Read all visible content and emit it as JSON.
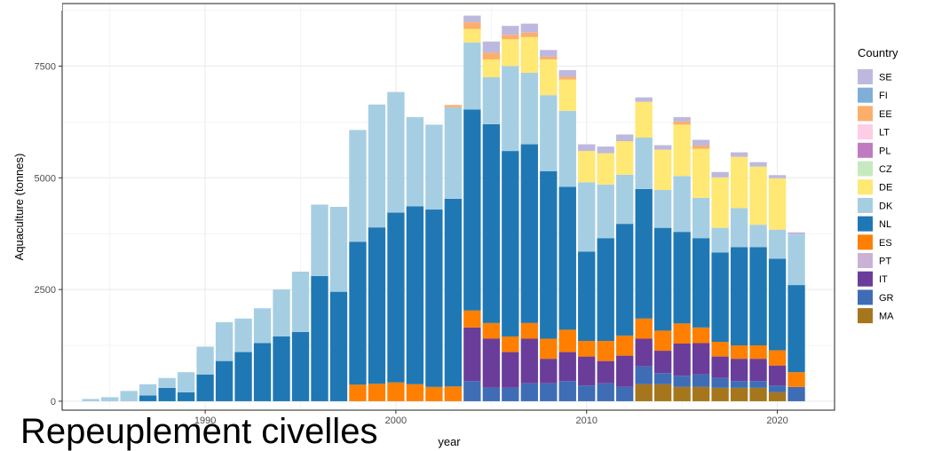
{
  "caption": "Repeuplement civelles",
  "chart_data": {
    "type": "bar",
    "stacked": true,
    "xlabel": "year",
    "ylabel": "Aquaculture (tonnes)",
    "xlim": [
      1982.5,
      2023
    ],
    "ylim": [
      -200,
      8900
    ],
    "x_ticks": [
      1990,
      2000,
      2010,
      2020
    ],
    "y_ticks": [
      0,
      2500,
      5000,
      7500
    ],
    "grid": true,
    "legend": {
      "title": "Country",
      "position": "right"
    },
    "x": [
      1984,
      1985,
      1986,
      1987,
      1988,
      1989,
      1990,
      1991,
      1992,
      1993,
      1994,
      1995,
      1996,
      1997,
      1998,
      1999,
      2000,
      2001,
      2002,
      2003,
      2004,
      2005,
      2006,
      2007,
      2008,
      2009,
      2010,
      2011,
      2012,
      2013,
      2014,
      2015,
      2016,
      2017,
      2018,
      2019,
      2020,
      2021
    ],
    "series": [
      {
        "name": "MA",
        "color": "#A6761D",
        "values": [
          0,
          0,
          0,
          0,
          0,
          0,
          0,
          0,
          0,
          0,
          0,
          0,
          0,
          0,
          0,
          0,
          0,
          0,
          0,
          0,
          0,
          0,
          0,
          0,
          0,
          0,
          0,
          0,
          0,
          380,
          380,
          320,
          320,
          300,
          300,
          300,
          200,
          0
        ]
      },
      {
        "name": "GR",
        "color": "#3E6DB5",
        "values": [
          0,
          0,
          0,
          0,
          0,
          0,
          0,
          0,
          0,
          0,
          0,
          0,
          0,
          0,
          0,
          0,
          0,
          0,
          0,
          0,
          450,
          300,
          300,
          400,
          400,
          450,
          350,
          400,
          320,
          400,
          250,
          250,
          280,
          220,
          150,
          150,
          150,
          320
        ]
      },
      {
        "name": "IT",
        "color": "#6A3D9A",
        "values": [
          0,
          0,
          0,
          0,
          0,
          0,
          0,
          0,
          0,
          0,
          0,
          0,
          0,
          0,
          0,
          0,
          0,
          0,
          0,
          0,
          1200,
          1100,
          800,
          1000,
          550,
          650,
          650,
          500,
          700,
          620,
          500,
          720,
          700,
          480,
          500,
          500,
          450,
          0
        ]
      },
      {
        "name": "PT",
        "color": "#CAB2D6",
        "values": [
          0,
          0,
          0,
          0,
          0,
          0,
          0,
          0,
          0,
          0,
          0,
          0,
          0,
          0,
          0,
          0,
          0,
          0,
          0,
          0,
          0,
          0,
          0,
          0,
          0,
          0,
          0,
          0,
          0,
          0,
          0,
          0,
          0,
          0,
          0,
          0,
          0,
          0
        ]
      },
      {
        "name": "ES",
        "color": "#FF7F00",
        "values": [
          0,
          0,
          0,
          0,
          0,
          0,
          0,
          0,
          0,
          0,
          0,
          0,
          0,
          0,
          370,
          390,
          420,
          380,
          320,
          330,
          380,
          350,
          350,
          350,
          450,
          500,
          350,
          450,
          450,
          450,
          450,
          450,
          350,
          330,
          300,
          300,
          340,
          330
        ]
      },
      {
        "name": "NL",
        "color": "#1F78B4",
        "values": [
          0,
          0,
          0,
          130,
          300,
          200,
          600,
          900,
          1100,
          1300,
          1450,
          1550,
          2800,
          2450,
          3200,
          3500,
          3800,
          3980,
          3970,
          4200,
          4500,
          4450,
          4150,
          4000,
          3750,
          3200,
          2000,
          2300,
          2500,
          2900,
          2300,
          2050,
          2000,
          2000,
          2200,
          2200,
          2050,
          1950
        ]
      },
      {
        "name": "DK",
        "color": "#A6CEE3",
        "values": [
          50,
          90,
          230,
          250,
          220,
          450,
          620,
          870,
          750,
          780,
          1050,
          1350,
          1600,
          1900,
          2500,
          2750,
          2700,
          2000,
          1900,
          2050,
          1500,
          1050,
          1900,
          1600,
          1700,
          1700,
          1550,
          1200,
          1100,
          1150,
          850,
          1250,
          900,
          550,
          870,
          500,
          650,
          1130
        ]
      },
      {
        "name": "CZ",
        "color": "#C7E9C0",
        "values": [
          0,
          0,
          0,
          0,
          0,
          0,
          0,
          0,
          0,
          0,
          0,
          0,
          0,
          0,
          0,
          0,
          0,
          0,
          0,
          0,
          0,
          0,
          0,
          0,
          0,
          0,
          0,
          0,
          0,
          0,
          0,
          0,
          0,
          0,
          0,
          0,
          0,
          0
        ]
      },
      {
        "name": "DE",
        "color": "#FFE873",
        "values": [
          0,
          0,
          0,
          0,
          0,
          0,
          0,
          0,
          0,
          0,
          0,
          0,
          0,
          0,
          0,
          0,
          0,
          0,
          0,
          0,
          300,
          400,
          600,
          800,
          800,
          700,
          700,
          700,
          750,
          800,
          900,
          1150,
          1100,
          1130,
          1150,
          1300,
          1150,
          0
        ]
      },
      {
        "name": "PL",
        "color": "#C07BC0",
        "values": [
          0,
          0,
          0,
          0,
          0,
          0,
          0,
          0,
          0,
          0,
          0,
          0,
          0,
          0,
          0,
          0,
          0,
          0,
          0,
          0,
          0,
          0,
          0,
          0,
          0,
          0,
          0,
          0,
          0,
          0,
          0,
          0,
          0,
          0,
          0,
          0,
          0,
          0
        ]
      },
      {
        "name": "LT",
        "color": "#FCCDE5",
        "values": [
          0,
          0,
          0,
          0,
          0,
          0,
          0,
          0,
          0,
          0,
          0,
          0,
          0,
          0,
          0,
          0,
          0,
          0,
          0,
          0,
          0,
          0,
          0,
          0,
          0,
          0,
          0,
          0,
          0,
          0,
          0,
          0,
          0,
          0,
          0,
          0,
          0,
          0
        ]
      },
      {
        "name": "EE",
        "color": "#FDAE6B",
        "values": [
          0,
          0,
          0,
          0,
          0,
          0,
          0,
          0,
          0,
          0,
          0,
          0,
          0,
          0,
          0,
          0,
          0,
          0,
          0,
          50,
          150,
          150,
          100,
          100,
          60,
          60,
          0,
          0,
          0,
          0,
          0,
          70,
          70,
          0,
          0,
          0,
          0,
          0
        ]
      },
      {
        "name": "FI",
        "color": "#7FAFD6",
        "values": [
          0,
          0,
          0,
          0,
          0,
          0,
          0,
          0,
          0,
          0,
          0,
          0,
          0,
          0,
          0,
          0,
          0,
          0,
          0,
          0,
          0,
          0,
          0,
          0,
          0,
          0,
          0,
          0,
          0,
          0,
          0,
          0,
          0,
          0,
          0,
          0,
          0,
          0
        ]
      },
      {
        "name": "SE",
        "color": "#BDB9DE",
        "values": [
          0,
          0,
          0,
          0,
          0,
          0,
          0,
          0,
          0,
          0,
          0,
          0,
          0,
          0,
          0,
          0,
          0,
          0,
          0,
          0,
          150,
          250,
          200,
          200,
          150,
          150,
          150,
          150,
          150,
          100,
          100,
          100,
          130,
          120,
          100,
          100,
          70,
          50
        ]
      }
    ],
    "legend_order": [
      "SE",
      "FI",
      "EE",
      "LT",
      "PL",
      "CZ",
      "DE",
      "DK",
      "NL",
      "ES",
      "PT",
      "IT",
      "GR",
      "MA"
    ]
  }
}
